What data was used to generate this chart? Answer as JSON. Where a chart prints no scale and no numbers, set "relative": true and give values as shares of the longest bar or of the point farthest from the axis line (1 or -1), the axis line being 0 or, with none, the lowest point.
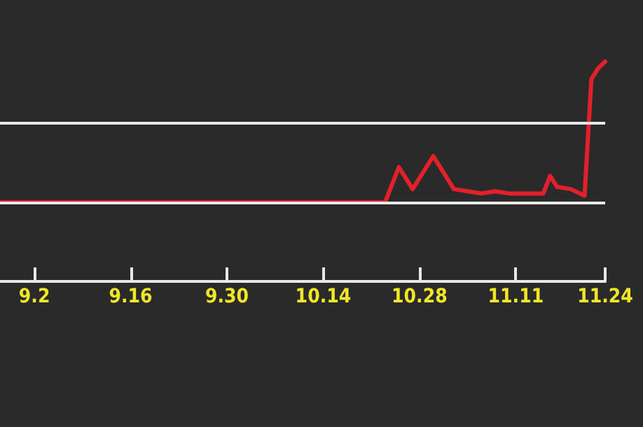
{
  "chart_data": {
    "type": "line",
    "relative": true,
    "x": [
      "--08-28",
      "--10-23",
      "--10-25",
      "--10-27",
      "--10-30",
      "--11-02",
      "--11-04",
      "--11-06",
      "--11-08",
      "--11-10",
      "--11-15",
      "--11-16",
      "--11-17",
      "--11-19",
      "--11-21",
      "--11-22",
      "--11-23",
      "--11-24"
    ],
    "series": [
      {
        "color": "#e3202b",
        "values": [
          0.36,
          0.36,
          0.52,
          0.42,
          0.57,
          0.42,
          0.41,
          0.4,
          0.41,
          0.4,
          0.4,
          0.48,
          0.43,
          0.42,
          0.39,
          0.92,
          0.97,
          1
        ]
      }
    ],
    "xlim": [
      "--08-28",
      "--11-24"
    ],
    "xticks": [
      {
        "value": "--09-02",
        "label": "9.2"
      },
      {
        "value": "--09-16",
        "label": "9.16"
      },
      {
        "value": "--09-30",
        "label": "9.30"
      },
      {
        "value": "--10-14",
        "label": "10.14"
      },
      {
        "value": "--10-28",
        "label": "10.28"
      },
      {
        "value": "--11-11",
        "label": "11.11"
      },
      {
        "value": "--11-24",
        "label": "11.24"
      }
    ],
    "ref_lines": [
      {
        "axis": "y",
        "value": 0.36,
        "color": "#e8e8e8"
      },
      {
        "axis": "y",
        "value": 0.72,
        "color": "#e8e8e8"
      }
    ],
    "grid": false,
    "marker": "none",
    "line_style": "solid"
  }
}
